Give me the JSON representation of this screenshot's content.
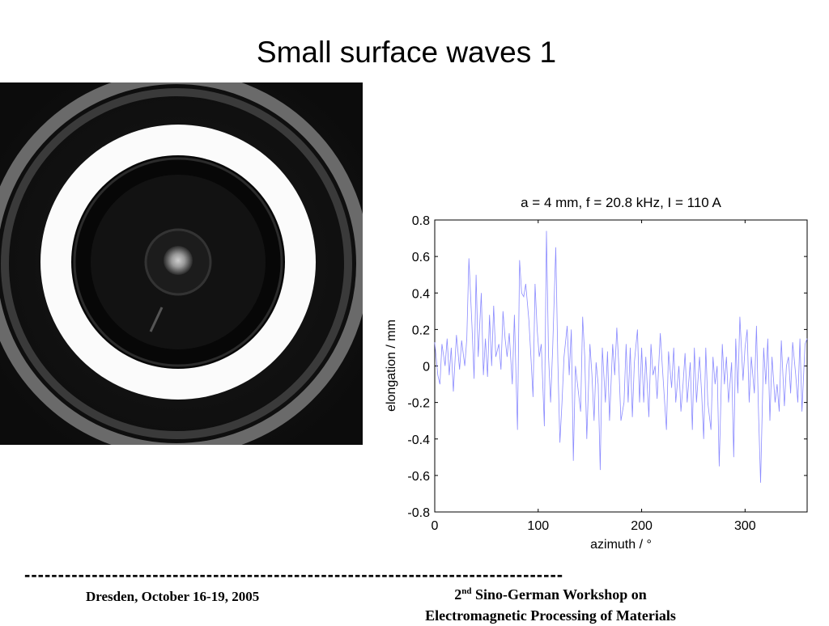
{
  "slide": {
    "title": "Small surface waves 1"
  },
  "photo": {
    "description_icon": "ring-photo-icon"
  },
  "chart_data": {
    "type": "line",
    "title": "a = 4 mm, f = 20.8 kHz, I = 110 A",
    "xlabel": "azimuth / °",
    "ylabel": "elongation / mm",
    "xlim": [
      0,
      360
    ],
    "ylim": [
      -0.8,
      0.8
    ],
    "xticks": [
      0,
      100,
      200,
      300
    ],
    "yticks": [
      0.8,
      0.6,
      0.4,
      0.2,
      0,
      -0.2,
      -0.4,
      -0.6,
      -0.8
    ],
    "ytick_labels": [
      "0.8",
      "0.6",
      "0.4",
      "0.2",
      "0",
      "-0.2",
      "-0.4",
      "-0.6",
      "-0.8"
    ],
    "xtick_labels": [
      "0",
      "100",
      "200",
      "300"
    ],
    "grid": false,
    "line_color": "#8b8bff",
    "series": [
      {
        "x": [
          0,
          3,
          5,
          7,
          10,
          12,
          14,
          16,
          18,
          21,
          24,
          26,
          29,
          31,
          33,
          36,
          38,
          40,
          42,
          45,
          47,
          49,
          51,
          53,
          55,
          57,
          59,
          62,
          64,
          66,
          68,
          70,
          72,
          75,
          77,
          80,
          82,
          84,
          86,
          88,
          91,
          93,
          95,
          97,
          99,
          101,
          103,
          106,
          108,
          110,
          112,
          114,
          117,
          119,
          121,
          123,
          125,
          128,
          130,
          132,
          134,
          136,
          139,
          141,
          143,
          145,
          147,
          150,
          152,
          154,
          156,
          158,
          160,
          162,
          165,
          167,
          169,
          172,
          174,
          176,
          178,
          180,
          183,
          185,
          187,
          189,
          191,
          193,
          196,
          198,
          200,
          202,
          204,
          207,
          209,
          211,
          213,
          215,
          218,
          220,
          222,
          224,
          226,
          229,
          231,
          233,
          236,
          238,
          240,
          242,
          244,
          247,
          249,
          251,
          253,
          256,
          258,
          260,
          262,
          264,
          267,
          269,
          271,
          273,
          275,
          278,
          280,
          282,
          284,
          287,
          289,
          291,
          293,
          295,
          298,
          300,
          302,
          304,
          306,
          309,
          311,
          313,
          315,
          318,
          320,
          322,
          324,
          326,
          329,
          331,
          333,
          335,
          338,
          340,
          342,
          344,
          346,
          349,
          351,
          353,
          355,
          358,
          360
        ],
        "y": [
          0.13,
          -0.05,
          -0.1,
          0.12,
          0.0,
          0.15,
          -0.05,
          0.1,
          -0.14,
          0.17,
          -0.02,
          0.14,
          0.0,
          0.15,
          0.59,
          0.22,
          -0.07,
          0.5,
          0.05,
          0.4,
          -0.05,
          0.15,
          -0.06,
          0.28,
          0.0,
          0.33,
          0.05,
          0.12,
          -0.02,
          0.3,
          0.15,
          0.05,
          0.18,
          -0.1,
          0.28,
          -0.35,
          0.58,
          0.4,
          0.38,
          0.45,
          0.25,
          0.05,
          -0.17,
          0.45,
          0.2,
          0.05,
          0.12,
          -0.33,
          0.74,
          0.05,
          -0.2,
          0.1,
          0.65,
          0.02,
          -0.42,
          -0.2,
          0.05,
          0.22,
          -0.05,
          0.2,
          -0.52,
          0.0,
          -0.15,
          -0.25,
          0.27,
          0.05,
          -0.4,
          0.12,
          -0.05,
          -0.3,
          0.02,
          -0.1,
          -0.57,
          0.1,
          -0.2,
          0.08,
          -0.3,
          0.12,
          -0.05,
          0.21,
          0.0,
          -0.3,
          -0.2,
          0.12,
          -0.2,
          0.1,
          -0.28,
          0.02,
          0.2,
          -0.2,
          0.1,
          -0.2,
          0.05,
          -0.28,
          0.12,
          -0.05,
          0.0,
          -0.18,
          0.18,
          0.0,
          -0.18,
          -0.35,
          0.08,
          -0.12,
          0.1,
          -0.2,
          0.0,
          -0.25,
          -0.1,
          0.07,
          -0.2,
          0.02,
          -0.35,
          0.1,
          -0.2,
          0.05,
          -0.15,
          -0.4,
          0.1,
          -0.2,
          -0.35,
          0.05,
          -0.1,
          0.0,
          -0.55,
          0.12,
          -0.1,
          0.05,
          -0.2,
          0.02,
          -0.5,
          0.15,
          -0.15,
          0.27,
          -0.08,
          0.1,
          0.2,
          -0.2,
          0.05,
          -0.15,
          0.22,
          -0.25,
          -0.64,
          0.1,
          -0.1,
          0.15,
          -0.3,
          0.05,
          -0.2,
          -0.1,
          -0.25,
          0.14,
          -0.22,
          0.0,
          0.05,
          -0.15,
          0.13,
          -0.05,
          -0.2,
          0.15,
          -0.25,
          0.12,
          0.15
        ]
      }
    ]
  },
  "footer": {
    "rule": "--------------------------------------------------------------------------------",
    "left": "Dresden, October 16-19, 2005",
    "center_line1_num": "2",
    "center_line1_sup": "nd",
    "center_line1_rest": " Sino-German Workshop on",
    "center_line2": "Electromagnetic Processing of Materials"
  }
}
